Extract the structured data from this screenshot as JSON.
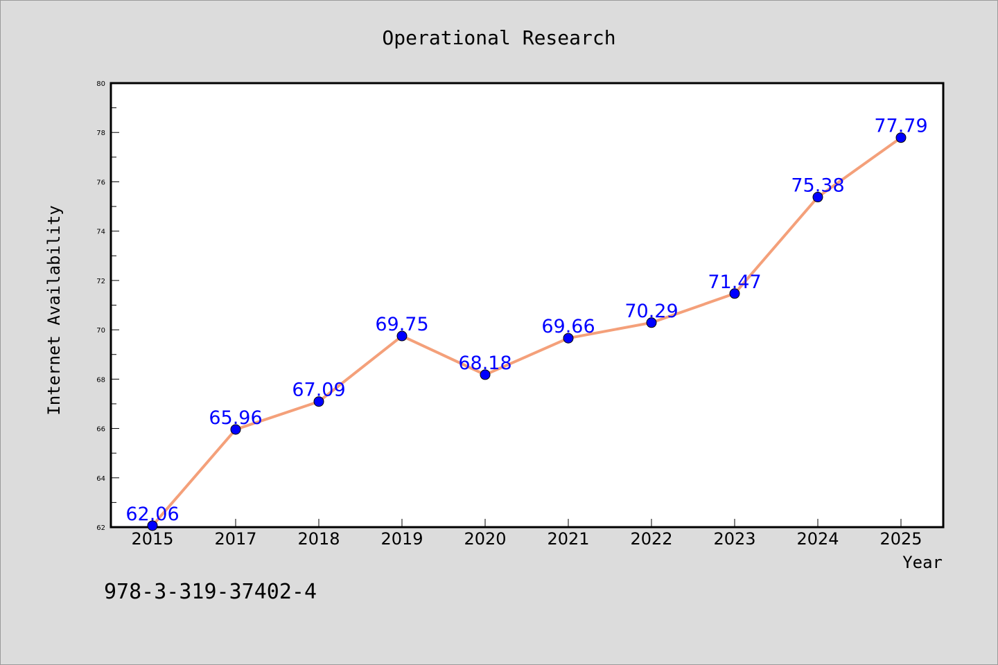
{
  "chart_data": {
    "type": "line",
    "title": "Operational Research",
    "xlabel": "Year",
    "ylabel": "Internet Availability",
    "ylim": [
      62,
      80
    ],
    "yticks": [
      "62",
      "64",
      "66",
      "68",
      "70",
      "72",
      "74",
      "76",
      "78",
      "80"
    ],
    "categories": [
      "2015",
      "2017",
      "2018",
      "2019",
      "2020",
      "2021",
      "2022",
      "2023",
      "2024",
      "2025"
    ],
    "series": [
      {
        "values": [
          62.06,
          65.96,
          67.09,
          69.75,
          68.18,
          69.66,
          70.29,
          71.47,
          75.38,
          77.79
        ],
        "labels": [
          "62.06",
          "65.96",
          "67.09",
          "69.75",
          "68.18",
          "69.66",
          "70.29",
          "71.47",
          "75.38",
          "77.79"
        ],
        "line_color": "#f4a07a",
        "marker_color": "#0000ff",
        "label_color": "#0000ff"
      }
    ],
    "grid": false,
    "legend": "none"
  },
  "footer_text": "978-3-319-37402-4",
  "colors": {
    "background": "#dcdcdc",
    "plot_background": "#ffffff",
    "axis": "#000000"
  }
}
